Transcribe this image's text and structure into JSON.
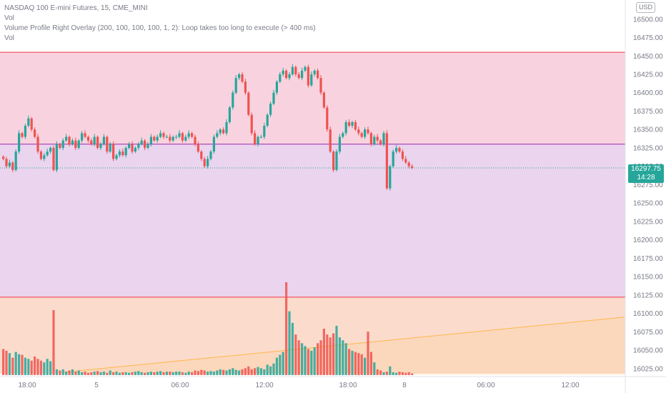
{
  "legend": {
    "symbol": "NASDAQ 100 E-mini Futures, 15, CME_MINI",
    "vol_label": "Vol",
    "indicator": "Volume Profile Right Overlay (200, 100, 100, 100, 1, 2): Loop takes too long to execute (> 400 ms)",
    "vol_label_2": "Vol"
  },
  "currency": "USD",
  "last_price": {
    "price": "16297.75",
    "countdown": "14:28"
  },
  "colors": {
    "up": "#26a69a",
    "down": "#ef5350",
    "zone_top": "#f8d3df",
    "zone_mid": "#ead4ee",
    "zone_bottom": "#fbdccc",
    "zone_line_red": "#f23645",
    "zone_line_purple": "#9c27b0",
    "trend_line": "#ffb74d"
  },
  "chart_data": {
    "type": "candlestick",
    "y_axis": {
      "range": [
        16018,
        16510
      ],
      "ticks": [
        "16500.00",
        "16475.00",
        "16450.00",
        "16425.00",
        "16400.00",
        "16375.00",
        "16350.00",
        "16325.00",
        "16300.00",
        "16275.00",
        "16250.00",
        "16225.00",
        "16200.00",
        "16175.00",
        "16150.00",
        "16125.00",
        "16100.00",
        "16075.00",
        "16050.00",
        "16025.00"
      ]
    },
    "x_axis": {
      "ticks": [
        "18:00",
        "5",
        "06:00",
        "12:00",
        "18:00",
        "8",
        "06:00",
        "12:00"
      ]
    },
    "zones": [
      {
        "name": "top",
        "from": 16330,
        "to": 16455
      },
      {
        "name": "middle",
        "from": 16122,
        "to": 16330
      },
      {
        "name": "bottom",
        "from": 16018,
        "to": 16122
      }
    ],
    "last_price": 16297.75,
    "closes": [
      16310,
      16300,
      16305,
      16295,
      16320,
      16345,
      16340,
      16355,
      16365,
      16350,
      16340,
      16320,
      16310,
      16315,
      16320,
      16325,
      16295,
      16330,
      16325,
      16335,
      16340,
      16330,
      16335,
      16325,
      16335,
      16345,
      16340,
      16335,
      16330,
      16340,
      16325,
      16330,
      16340,
      16320,
      16330,
      16310,
      16315,
      16320,
      16315,
      16325,
      16330,
      16320,
      16325,
      16330,
      16335,
      16325,
      16330,
      16340,
      16335,
      16340,
      16345,
      16340,
      16340,
      16335,
      16340,
      16340,
      16345,
      16335,
      16340,
      16345,
      16340,
      16330,
      16320,
      16310,
      16300,
      16310,
      16320,
      16340,
      16345,
      16350,
      16345,
      16360,
      16380,
      16400,
      16420,
      16425,
      16415,
      16400,
      16370,
      16345,
      16330,
      16340,
      16340,
      16355,
      16370,
      16385,
      16400,
      16415,
      16425,
      16430,
      16420,
      16425,
      16435,
      16425,
      16420,
      16430,
      16435,
      16410,
      16425,
      16430,
      16420,
      16400,
      16380,
      16350,
      16320,
      16295,
      16320,
      16340,
      16345,
      16360,
      16355,
      16360,
      16350,
      16345,
      16340,
      16350,
      16345,
      16330,
      16340,
      16335,
      16330,
      16345,
      16270,
      16300,
      16320,
      16325,
      16320,
      16310,
      16305,
      16300,
      16297.75
    ],
    "volume": {
      "range": [
        0,
        160
      ],
      "values": [
        45,
        42,
        38,
        30,
        40,
        36,
        35,
        30,
        28,
        25,
        32,
        28,
        25,
        22,
        28,
        24,
        112,
        10,
        8,
        10,
        6,
        8,
        10,
        6,
        8,
        5,
        6,
        4,
        5,
        6,
        7,
        5,
        6,
        4,
        8,
        5,
        6,
        4,
        5,
        5,
        4,
        5,
        6,
        7,
        5,
        4,
        5,
        6,
        5,
        6,
        7,
        5,
        6,
        6,
        5,
        6,
        6,
        5,
        4,
        6,
        5,
        8,
        7,
        9,
        8,
        6,
        7,
        6,
        8,
        10,
        9,
        8,
        10,
        12,
        9,
        8,
        10,
        12,
        15,
        10,
        12,
        14,
        12,
        10,
        18,
        15,
        20,
        30,
        35,
        40,
        160,
        110,
        90,
        70,
        60,
        55,
        50,
        45,
        42,
        48,
        55,
        60,
        80,
        70,
        65,
        72,
        85,
        65,
        60,
        55,
        45,
        42,
        40,
        38,
        36,
        30,
        75,
        40,
        22,
        10,
        8,
        5,
        6,
        15,
        5,
        4,
        6,
        5,
        4,
        5,
        3
      ],
      "trend_start": [
        88,
        5
      ],
      "trend_end": [
        874,
        100
      ]
    }
  }
}
